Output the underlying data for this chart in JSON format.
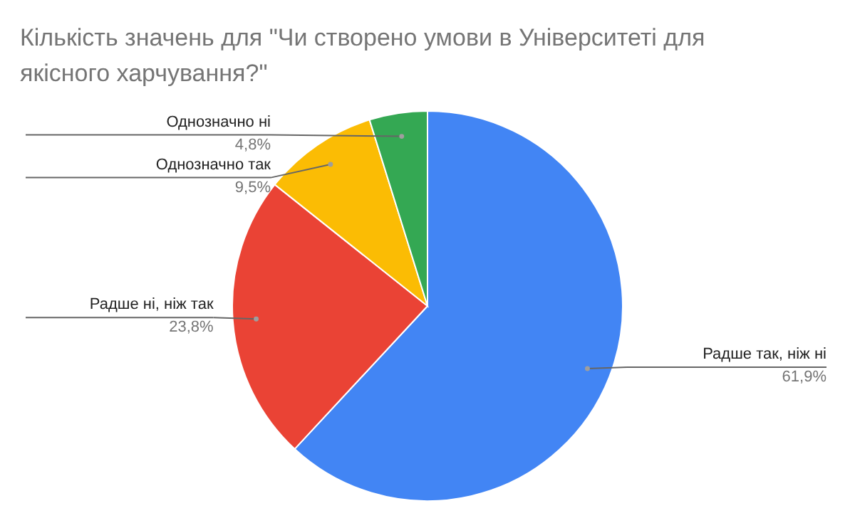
{
  "chart_data": {
    "type": "pie",
    "title": "Кількість значень для \"Чи створено умови в Університеті для якісного харчування?\"",
    "categories": [
      "Радше так, ніж ні",
      "Радше ні, ніж так",
      "Однозначно так",
      "Однозначно ні"
    ],
    "values": [
      61.9,
      23.8,
      9.5,
      4.8
    ],
    "colors": [
      "#4285f4",
      "#ea4335",
      "#fbbc04",
      "#34a853"
    ],
    "value_labels": [
      "61,9%",
      "23,8%",
      "9,5%",
      "4,8%"
    ]
  }
}
